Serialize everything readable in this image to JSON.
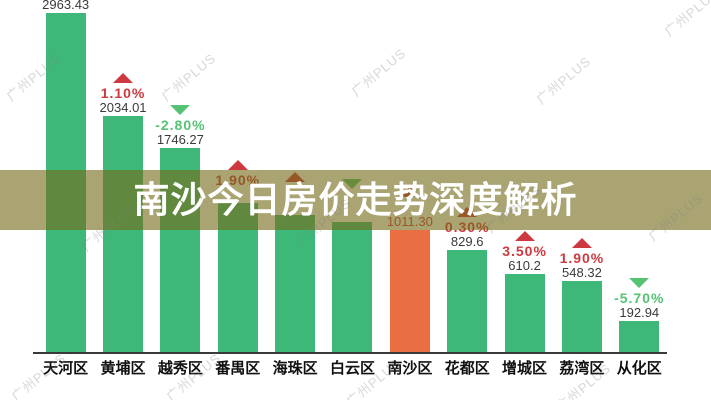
{
  "banner": {
    "title": "南沙今日房价走势深度解析"
  },
  "watermark": {
    "text": "广州PLUS"
  },
  "colors": {
    "bar_green": "#3EB878",
    "bar_highlight_orange": "#E96F43",
    "rise_red": "#CD393E",
    "fall_green": "#56C274",
    "value_text": "#3B3B3B",
    "banner_overlay": "rgba(118,106,28,0.62)",
    "axis": "#3A3A3A"
  },
  "chart_data": {
    "type": "bar",
    "title": "南沙今日房价走势深度解析",
    "xlabel": "",
    "ylabel": "",
    "grid": false,
    "legend": false,
    "ylim": [
      0,
      3100
    ],
    "categories": [
      "天河区",
      "黄埔区",
      "越秀区",
      "番禺区",
      "海珠区",
      "白云区",
      "南沙区",
      "花都区",
      "增城区",
      "荔湾区",
      "从化区"
    ],
    "values": [
      2963.43,
      2034.01,
      1746.27,
      1250,
      1145,
      1080,
      1011.3,
      829.6,
      610.2,
      548.32,
      192.94
    ],
    "estimated_indices": [
      3,
      4,
      5
    ],
    "value_labels": [
      "2963.43",
      "2034.01",
      "1746.27",
      "",
      "",
      "",
      "1011.30",
      "829.6",
      "610.2",
      "548.32",
      "192.94"
    ],
    "pct_labels": [
      "",
      "1.10%",
      "-2.80%",
      "1.90%",
      "",
      "",
      "",
      "0.30%",
      "3.50%",
      "1.90%",
      "-5.70%"
    ],
    "directions": [
      "",
      "up",
      "down",
      "up",
      "up",
      "down",
      "up",
      "up",
      "up",
      "up",
      "down"
    ],
    "highlight_index": 6,
    "annotation": "labels of 番禺区/海珠区/白云区/南沙区 partially hidden behind title banner overlay"
  }
}
